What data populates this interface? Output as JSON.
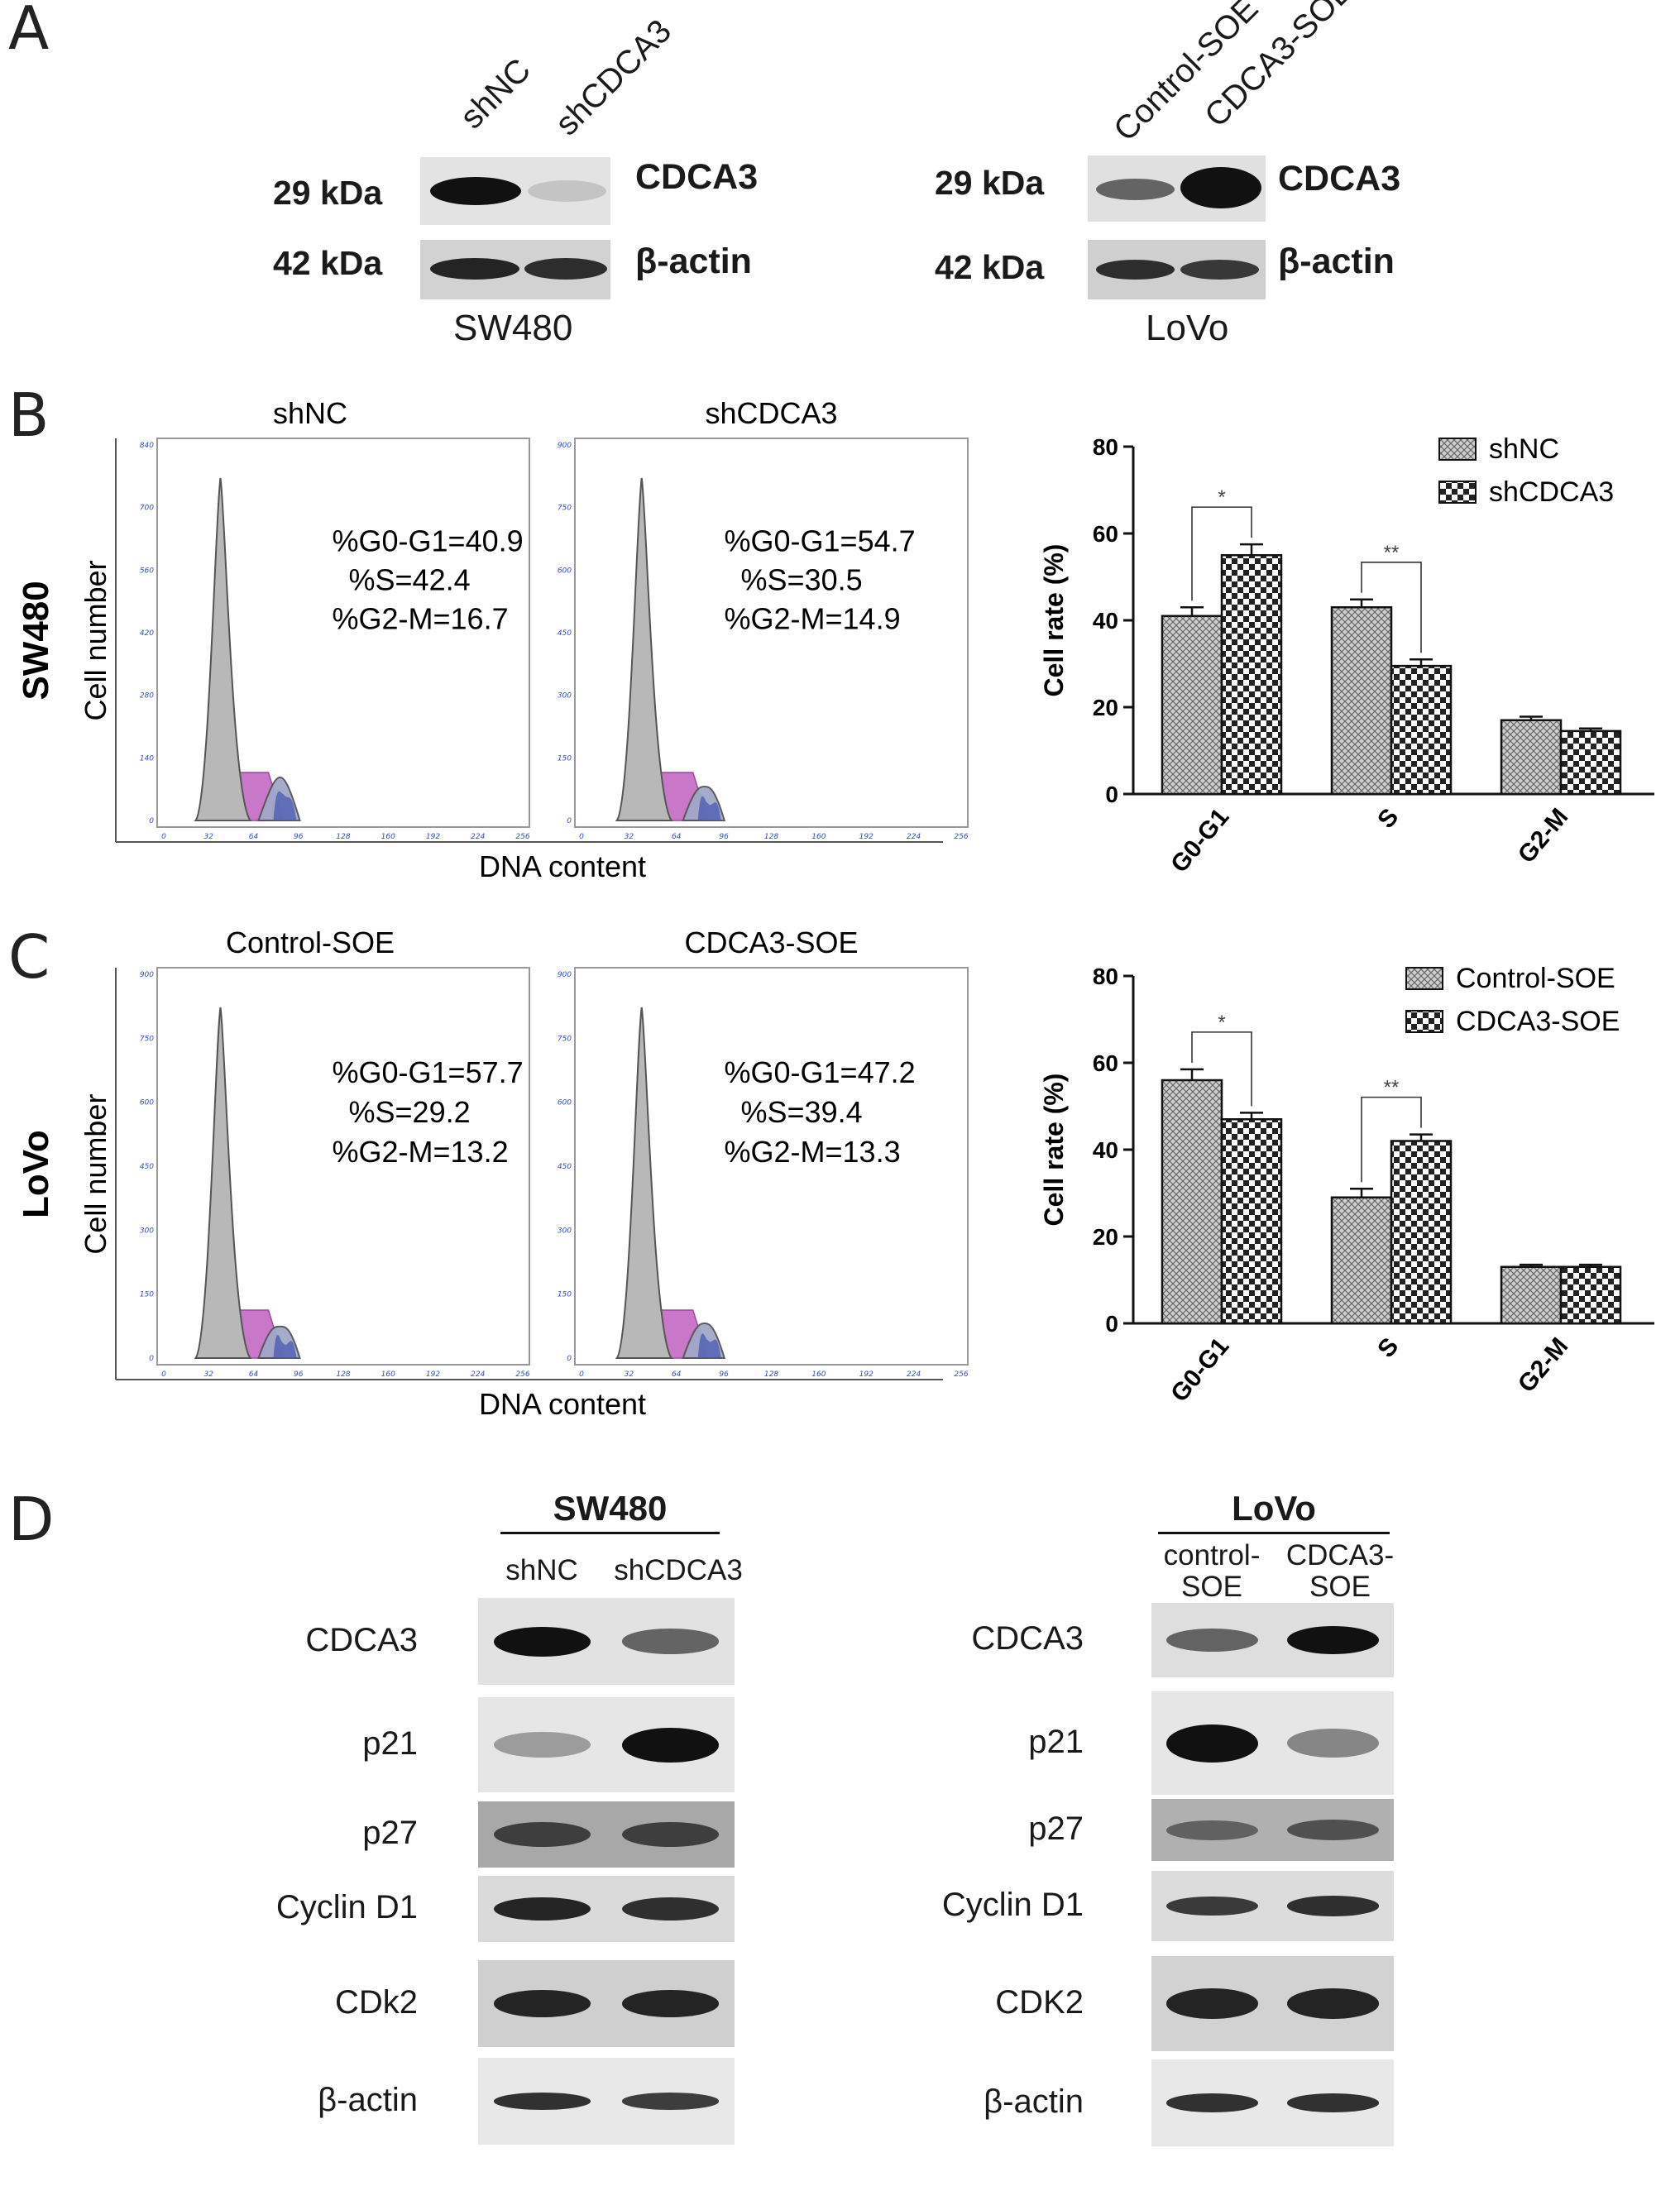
{
  "panels": {
    "a": "A",
    "b": "B",
    "c": "C",
    "d": "D"
  },
  "panel_a": {
    "left": {
      "lanes": [
        "shNC",
        "shCDCA3"
      ],
      "rows": [
        {
          "kda": "29 kDa",
          "protein": "CDCA3"
        },
        {
          "kda": "42 kDa",
          "protein": "β-actin"
        }
      ],
      "cell_line": "SW480",
      "band_intensity": {
        "CDCA3": [
          1.0,
          0.15
        ],
        "β-actin": [
          0.9,
          0.85
        ]
      }
    },
    "right": {
      "lanes": [
        "Control-SOE",
        "CDCA3-SOE"
      ],
      "rows": [
        {
          "kda": "29 kDa",
          "protein": "CDCA3"
        },
        {
          "kda": "42 kDa",
          "protein": "β-actin"
        }
      ],
      "cell_line": "LoVo",
      "band_intensity": {
        "CDCA3": [
          0.6,
          1.0
        ],
        "β-actin": [
          0.85,
          0.8
        ]
      }
    }
  },
  "panel_b": {
    "row_label": "SW480",
    "flow": [
      {
        "title": "shNC",
        "g0g1": "%G0-G1=40.9",
        "s": "%S=42.4",
        "g2m": "%G2-M=16.7",
        "yticks": [
          "840",
          "700",
          "560",
          "420",
          "280",
          "140",
          "0"
        ]
      },
      {
        "title": "shCDCA3",
        "g0g1": "%G0-G1=54.7",
        "s": "%S=30.5",
        "g2m": "%G2-M=14.9",
        "yticks": [
          "900",
          "750",
          "600",
          "450",
          "300",
          "150",
          "0"
        ]
      }
    ],
    "ylabel": "Cell number",
    "xlabel": "DNA content",
    "xticks": [
      "0",
      "32",
      "64",
      "96",
      "128",
      "160",
      "192",
      "224",
      "256"
    ]
  },
  "panel_c": {
    "row_label": "LoVo",
    "flow": [
      {
        "title": "Control-SOE",
        "g0g1": "%G0-G1=57.7",
        "s": "%S=29.2",
        "g2m": "%G2-M=13.2",
        "yticks": [
          "900",
          "750",
          "600",
          "450",
          "300",
          "150",
          "0"
        ]
      },
      {
        "title": "CDCA3-SOE",
        "g0g1": "%G0-G1=47.2",
        "s": "%S=39.4",
        "g2m": "%G2-M=13.3",
        "yticks": [
          "900",
          "750",
          "600",
          "450",
          "300",
          "150",
          "0"
        ]
      }
    ],
    "ylabel": "Cell number",
    "xlabel": "DNA content",
    "xticks": [
      "0",
      "32",
      "64",
      "96",
      "128",
      "160",
      "192",
      "224",
      "256"
    ]
  },
  "chart_data": [
    {
      "type": "bar",
      "categories": [
        "G0-G1",
        "S",
        "G2-M"
      ],
      "series": [
        {
          "name": "shNC",
          "values": [
            41,
            43,
            17
          ],
          "errors": [
            2,
            1.8,
            0.8
          ]
        },
        {
          "name": "shCDCA3",
          "values": [
            55,
            29.5,
            14.5
          ],
          "errors": [
            2.5,
            1.5,
            0.6
          ]
        }
      ],
      "ylabel": "Cell rate (%)",
      "ylim": [
        0,
        80
      ],
      "yticks": [
        "0",
        "20",
        "40",
        "60",
        "80"
      ],
      "significance": [
        {
          "category": "G0-G1",
          "mark": "*"
        },
        {
          "category": "S",
          "mark": "**"
        }
      ],
      "legend": "top-right"
    },
    {
      "type": "bar",
      "categories": [
        "G0-G1",
        "S",
        "G2-M"
      ],
      "series": [
        {
          "name": "Control-SOE",
          "values": [
            56,
            29,
            13
          ],
          "errors": [
            2.5,
            2,
            0.5
          ]
        },
        {
          "name": "CDCA3-SOE",
          "values": [
            47,
            42,
            13
          ],
          "errors": [
            1.5,
            1.5,
            0.5
          ]
        }
      ],
      "ylabel": "Cell rate (%)",
      "ylim": [
        0,
        80
      ],
      "yticks": [
        "0",
        "20",
        "40",
        "60",
        "80"
      ],
      "significance": [
        {
          "category": "G0-G1",
          "mark": "*"
        },
        {
          "category": "S",
          "mark": "**"
        }
      ],
      "legend": "top-right"
    }
  ],
  "panel_d": {
    "left": {
      "title": "SW480",
      "lanes": [
        "shNC",
        "shCDCA3"
      ],
      "proteins": [
        "CDCA3",
        "p21",
        "p27",
        "Cyclin D1",
        "CDk2",
        "β-actin"
      ],
      "band_intensity": [
        [
          1.0,
          0.6
        ],
        [
          0.35,
          1.0
        ],
        [
          0.7,
          0.7
        ],
        [
          0.9,
          0.85
        ],
        [
          0.9,
          0.9
        ],
        [
          0.85,
          0.8
        ]
      ]
    },
    "right": {
      "title": "LoVo",
      "lanes": [
        "control-\nSOE",
        "CDCA3-\nSOE"
      ],
      "proteins": [
        "CDCA3",
        "p21",
        "p27",
        "Cyclin D1",
        "CDK2",
        "β-actin"
      ],
      "band_intensity": [
        [
          0.6,
          1.0
        ],
        [
          1.0,
          0.45
        ],
        [
          0.5,
          0.6
        ],
        [
          0.8,
          0.85
        ],
        [
          0.9,
          0.9
        ],
        [
          0.85,
          0.85
        ]
      ]
    }
  }
}
